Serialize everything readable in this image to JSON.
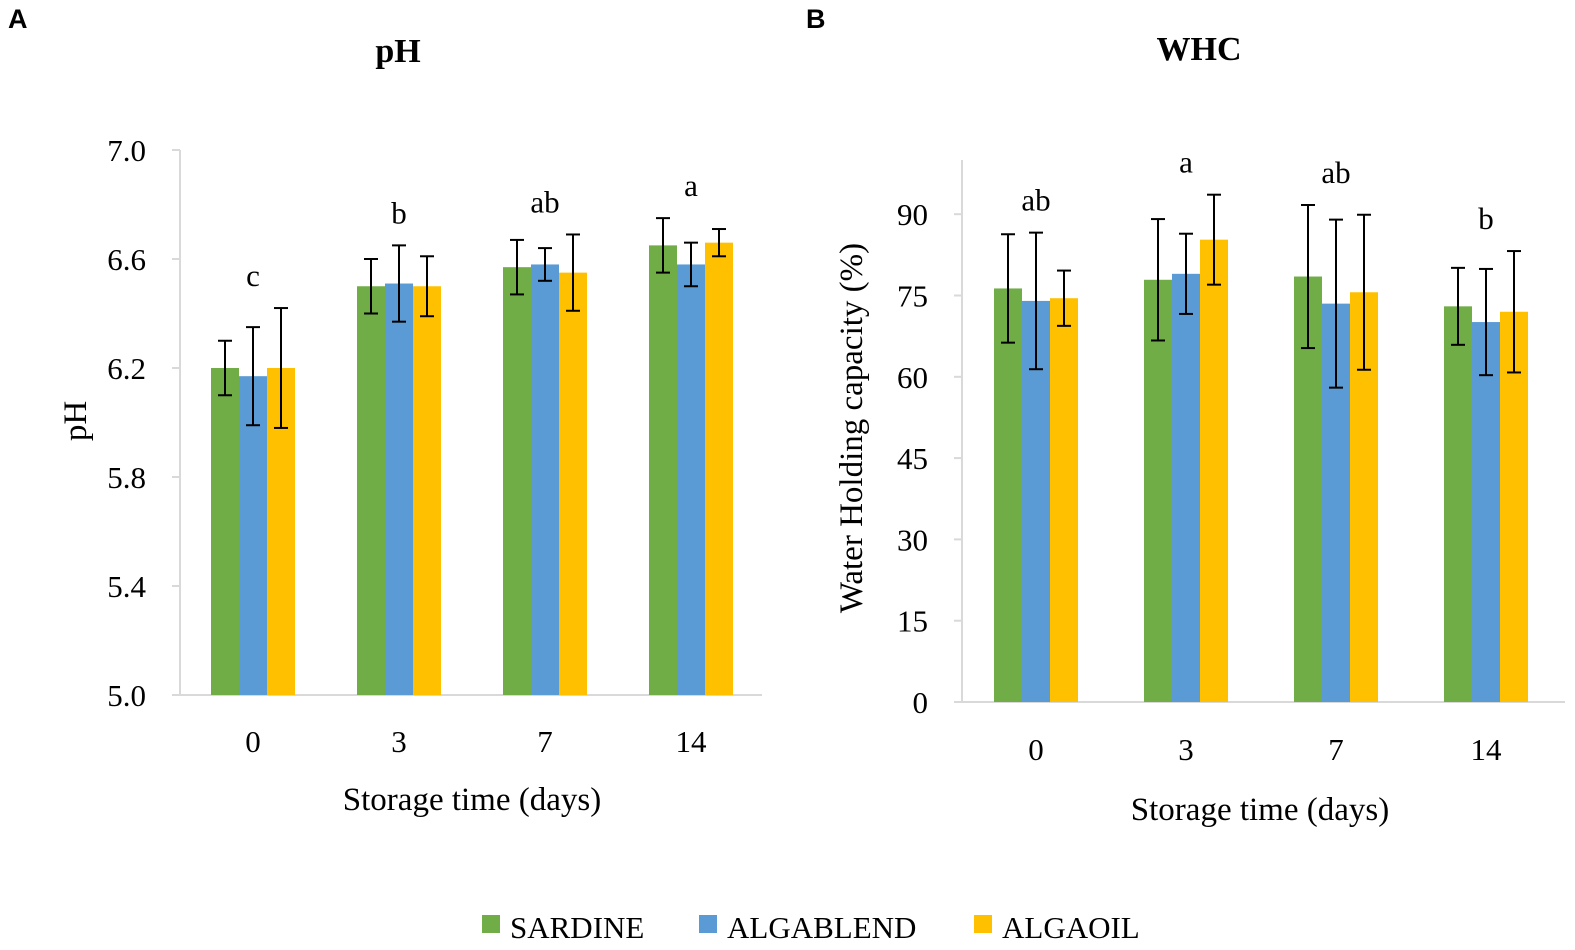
{
  "legend": [
    {
      "name": "SARDINE",
      "color": "#70AD47"
    },
    {
      "name": "ALGABLEND",
      "color": "#5B9BD5"
    },
    {
      "name": "ALGAOIL",
      "color": "#FFC000"
    }
  ],
  "chart_data": [
    {
      "panel": "A",
      "type": "bar",
      "title": "pH",
      "xlabel": "Storage time (days)",
      "ylabel": "pH",
      "ylim": [
        5.0,
        7.0
      ],
      "yticks": [
        "5.0",
        "5.4",
        "5.8",
        "6.2",
        "6.6",
        "7.0"
      ],
      "categories": [
        "0",
        "3",
        "7",
        "14"
      ],
      "significance": [
        "c",
        "b",
        "ab",
        "a"
      ],
      "series": [
        {
          "name": "SARDINE",
          "values": [
            6.2,
            6.5,
            6.57,
            6.65
          ],
          "errors": [
            0.1,
            0.1,
            0.1,
            0.1
          ]
        },
        {
          "name": "ALGABLEND",
          "values": [
            6.17,
            6.51,
            6.58,
            6.58
          ],
          "errors": [
            0.18,
            0.14,
            0.06,
            0.08
          ]
        },
        {
          "name": "ALGAOIL",
          "values": [
            6.2,
            6.5,
            6.55,
            6.66
          ],
          "errors": [
            0.22,
            0.11,
            0.14,
            0.05
          ]
        }
      ]
    },
    {
      "panel": "B",
      "type": "bar",
      "title": "WHC",
      "xlabel": "Storage time (days)",
      "ylabel": "Water Holding capacity (%)",
      "ylim": [
        0,
        100
      ],
      "yticks": [
        "0",
        "15",
        "30",
        "45",
        "60",
        "75",
        "90"
      ],
      "categories": [
        "0",
        "3",
        "7",
        "14"
      ],
      "significance": [
        "ab",
        "a",
        "ab",
        "b"
      ],
      "series": [
        {
          "name": "SARDINE",
          "values": [
            76.3,
            77.9,
            78.5,
            73.0
          ],
          "errors": [
            10.0,
            11.2,
            13.2,
            7.1
          ]
        },
        {
          "name": "ALGABLEND",
          "values": [
            74.0,
            79.0,
            73.5,
            70.1
          ],
          "errors": [
            12.6,
            7.4,
            15.5,
            9.8
          ]
        },
        {
          "name": "ALGAOIL",
          "values": [
            74.5,
            85.3,
            75.6,
            72.0
          ],
          "errors": [
            5.1,
            8.3,
            14.3,
            11.2
          ]
        }
      ]
    }
  ]
}
